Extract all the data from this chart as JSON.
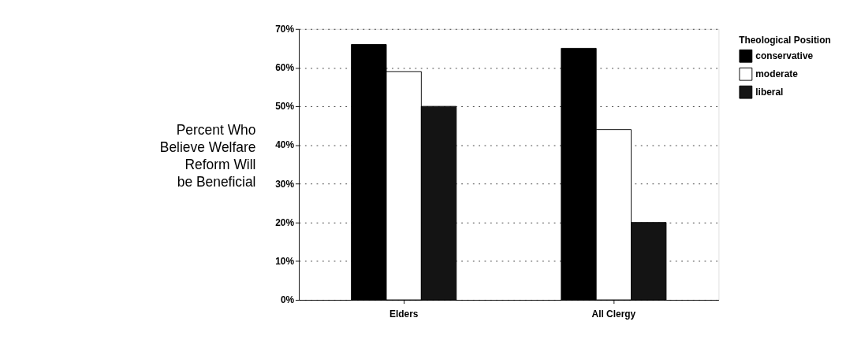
{
  "chart_data": {
    "type": "bar",
    "categories": [
      "Elders",
      "All Clergy"
    ],
    "series": [
      {
        "name": "conservative",
        "color": "#000000",
        "values": [
          66,
          65
        ]
      },
      {
        "name": "moderate",
        "color": "#ffffff",
        "values": [
          59,
          44
        ]
      },
      {
        "name": "liberal",
        "color": "#141414",
        "values": [
          50,
          20
        ]
      }
    ],
    "ylabel": "Percent Who\nBelieve Welfare\nReform Will\nbe Beneficial",
    "legend_title": "Theological Position",
    "ylim": [
      0,
      70
    ],
    "yticks": [
      {
        "value": 0,
        "label": "0%"
      },
      {
        "value": 10,
        "label": "10%"
      },
      {
        "value": 20,
        "label": "20%"
      },
      {
        "value": 30,
        "label": "30%"
      },
      {
        "value": 40,
        "label": "40%"
      },
      {
        "value": 50,
        "label": "50%"
      },
      {
        "value": 60,
        "label": "60%"
      },
      {
        "value": 70,
        "label": "70%"
      }
    ],
    "grid": "y",
    "legend": "right"
  }
}
